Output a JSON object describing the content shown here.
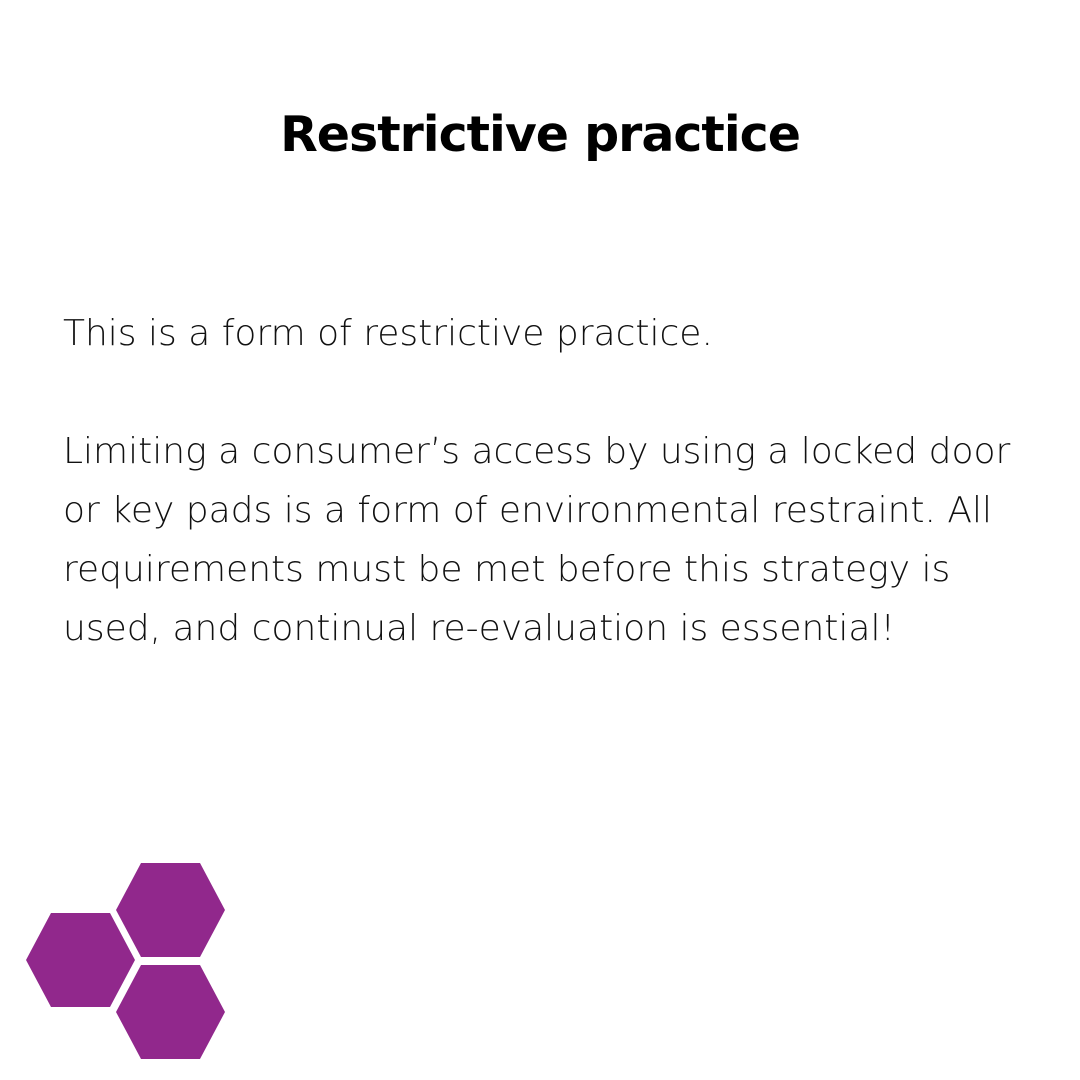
{
  "slide": {
    "title": "Restrictive practice",
    "paragraphs": [
      "This is a form of restrictive practice.",
      "Limiting a consumer’s access by using a locked door or key pads is a form of environmental restraint. All requirements must be met before this strategy is used, and continual re-evaluation is essential!"
    ]
  },
  "logo": {
    "icon": "hexagon-cluster-icon",
    "color": "#91288C"
  }
}
